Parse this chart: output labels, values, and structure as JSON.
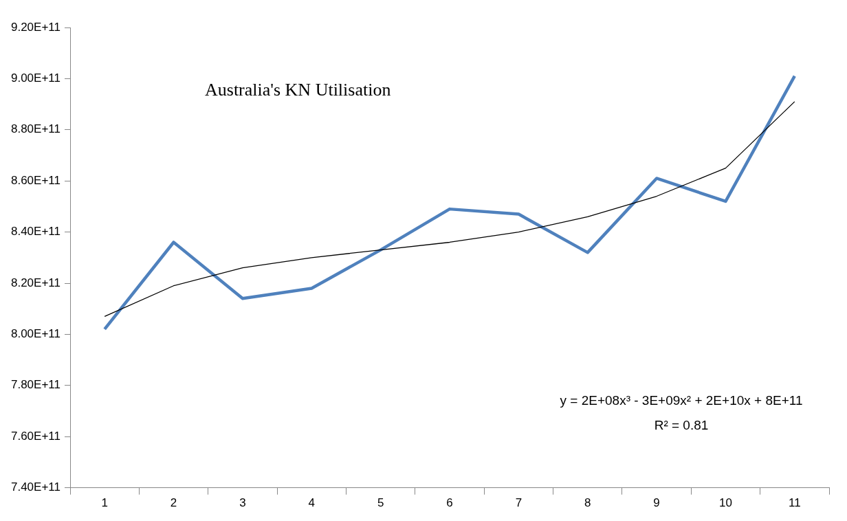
{
  "chart_data": {
    "type": "line",
    "title": "Australia's KN Utilisation",
    "categories": [
      "1",
      "2",
      "3",
      "4",
      "5",
      "6",
      "7",
      "8",
      "9",
      "10",
      "11"
    ],
    "series": [
      {
        "color": "#4f81bd",
        "values": [
          802000000000.0,
          836000000000.0,
          814000000000.0,
          818000000000.0,
          833000000000.0,
          849000000000.0,
          847000000000.0,
          832000000000.0,
          861000000000.0,
          852000000000.0,
          901000000000.0
        ]
      },
      {
        "type": "line",
        "color": "#000000",
        "values": [
          807000000000.0,
          819000000000.0,
          826000000000.0,
          830000000000.0,
          833000000000.0,
          836000000000.0,
          840000000000.0,
          846000000000.0,
          854000000000.0,
          865000000000.0,
          891000000000.0
        ]
      }
    ],
    "ylim": [
      740000000000.0,
      920000000000.0
    ],
    "yticks": [
      {
        "value": 740000000000.0,
        "label": "7.40E+11"
      },
      {
        "value": 760000000000.0,
        "label": "7.60E+11"
      },
      {
        "value": 780000000000.0,
        "label": "7.80E+11"
      },
      {
        "value": 800000000000.0,
        "label": "8.00E+11"
      },
      {
        "value": 820000000000.0,
        "label": "8.20E+11"
      },
      {
        "value": 840000000000.0,
        "label": "8.40E+11"
      },
      {
        "value": 860000000000.0,
        "label": "8.60E+11"
      },
      {
        "value": 880000000000.0,
        "label": "8.80E+11"
      },
      {
        "value": 900000000000.0,
        "label": "9.00E+11"
      },
      {
        "value": 920000000000.0,
        "label": "9.20E+11"
      }
    ],
    "annotations": [
      "y = 2E+08x³ - 3E+09x² + 2E+10x + 8E+11",
      "R² = 0.81"
    ],
    "grid": false,
    "legend": false,
    "marker": "none"
  }
}
